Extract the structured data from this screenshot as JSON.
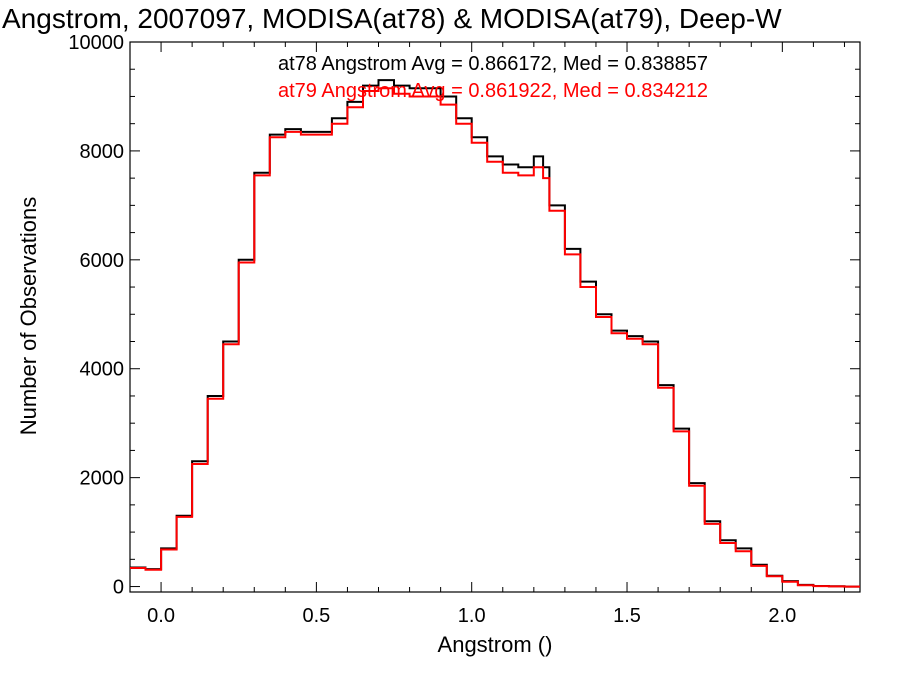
{
  "chart_data": {
    "type": "line",
    "title": "Angstrom, 2007097, MODISA(at78) & MODISA(at79), Deep-W",
    "xlabel": "Angstrom ()",
    "ylabel": "Number of Observations",
    "xlim": [
      -0.1,
      2.25
    ],
    "ylim": [
      -100,
      10000
    ],
    "xticks": [
      0.0,
      0.5,
      1.0,
      1.5,
      2.0
    ],
    "xtick_labels": [
      "0.0",
      "0.5",
      "1.0",
      "1.5",
      "2.0"
    ],
    "yticks": [
      0,
      2000,
      4000,
      6000,
      8000,
      10000
    ],
    "ytick_labels": [
      "0",
      "2000",
      "4000",
      "6000",
      "8000",
      "10000"
    ],
    "grid": false,
    "legend_position": "top-right",
    "legend": [
      "at78 Angstrom Avg = 0.866172, Med = 0.838857",
      "at79 Angstrom Avg = 0.861922, Med = 0.834212"
    ],
    "series": [
      {
        "name": "at78",
        "color": "#000000",
        "x": [
          -0.1,
          -0.05,
          0.0,
          0.05,
          0.1,
          0.15,
          0.2,
          0.25,
          0.3,
          0.35,
          0.4,
          0.45,
          0.5,
          0.55,
          0.6,
          0.65,
          0.7,
          0.75,
          0.8,
          0.85,
          0.9,
          0.95,
          1.0,
          1.05,
          1.1,
          1.15,
          1.2,
          1.23,
          1.25,
          1.3,
          1.35,
          1.4,
          1.45,
          1.5,
          1.55,
          1.6,
          1.65,
          1.7,
          1.75,
          1.8,
          1.85,
          1.9,
          1.95,
          2.0,
          2.05,
          2.1,
          2.15,
          2.2,
          2.25
        ],
        "y": [
          350,
          320,
          700,
          1300,
          2300,
          3500,
          4500,
          6000,
          7600,
          8300,
          8400,
          8350,
          8350,
          8600,
          8900,
          9200,
          9300,
          9200,
          9150,
          9150,
          9000,
          8600,
          8250,
          7900,
          7750,
          7700,
          7900,
          7700,
          7000,
          6200,
          5600,
          5000,
          4700,
          4600,
          4500,
          3700,
          2900,
          1900,
          1200,
          850,
          700,
          400,
          200,
          100,
          30,
          10,
          5,
          0,
          0
        ]
      },
      {
        "name": "at79",
        "color": "#ff0000",
        "x": [
          -0.1,
          -0.05,
          0.0,
          0.05,
          0.1,
          0.15,
          0.2,
          0.25,
          0.3,
          0.35,
          0.4,
          0.45,
          0.5,
          0.55,
          0.6,
          0.65,
          0.7,
          0.75,
          0.8,
          0.85,
          0.9,
          0.95,
          1.0,
          1.05,
          1.1,
          1.15,
          1.2,
          1.23,
          1.25,
          1.3,
          1.35,
          1.4,
          1.45,
          1.5,
          1.55,
          1.6,
          1.65,
          1.7,
          1.75,
          1.8,
          1.85,
          1.9,
          1.95,
          2.0,
          2.05,
          2.1,
          2.15,
          2.2,
          2.25
        ],
        "y": [
          340,
          310,
          680,
          1280,
          2250,
          3450,
          4450,
          5950,
          7550,
          8250,
          8350,
          8300,
          8300,
          8500,
          8800,
          9100,
          9150,
          9050,
          9000,
          9000,
          8850,
          8500,
          8150,
          7800,
          7600,
          7550,
          7700,
          7500,
          6900,
          6100,
          5500,
          4950,
          4650,
          4550,
          4450,
          3650,
          2850,
          1850,
          1150,
          800,
          650,
          380,
          190,
          90,
          25,
          8,
          3,
          0,
          0
        ]
      }
    ]
  }
}
